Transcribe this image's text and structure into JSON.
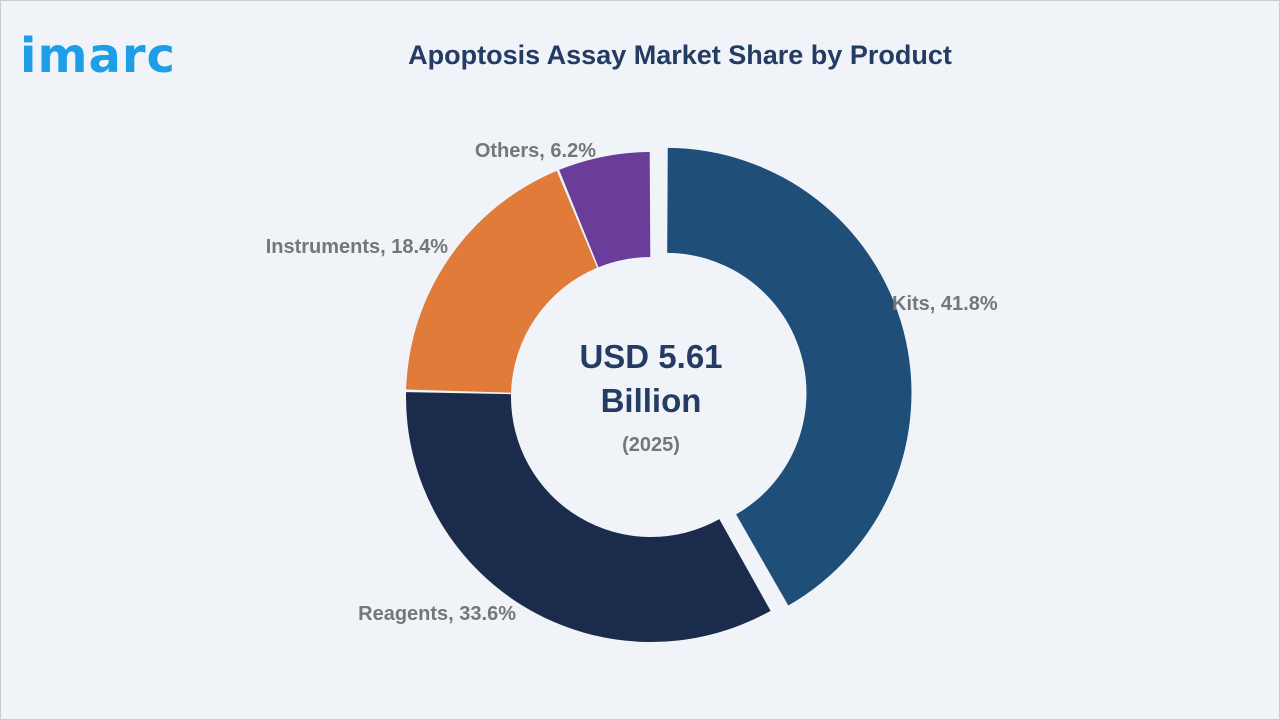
{
  "brand": {
    "logo_text": "imarc",
    "logo_color": "#1f9ee8"
  },
  "chart_data": {
    "type": "pie",
    "title": "Apoptosis Assay Market Share by Product",
    "unit": "%",
    "center": {
      "value_line1": "USD 5.61",
      "value_line2": "Billion",
      "year": "(2025)"
    },
    "slices": [
      {
        "name": "Kits",
        "value": 41.8,
        "label": "Kits, 41.8%",
        "color": "#1f4e79",
        "exploded": true
      },
      {
        "name": "Reagents",
        "value": 33.6,
        "label": "Reagents, 33.6%",
        "color": "#1b2b4b",
        "exploded": false
      },
      {
        "name": "Instruments",
        "value": 18.4,
        "label": "Instruments, 18.4%",
        "color": "#e07b39",
        "exploded": false
      },
      {
        "name": "Others",
        "value": 6.2,
        "label": "Others, 6.2%",
        "color": "#6a3d9a",
        "exploded": false
      }
    ],
    "legend": "none"
  }
}
